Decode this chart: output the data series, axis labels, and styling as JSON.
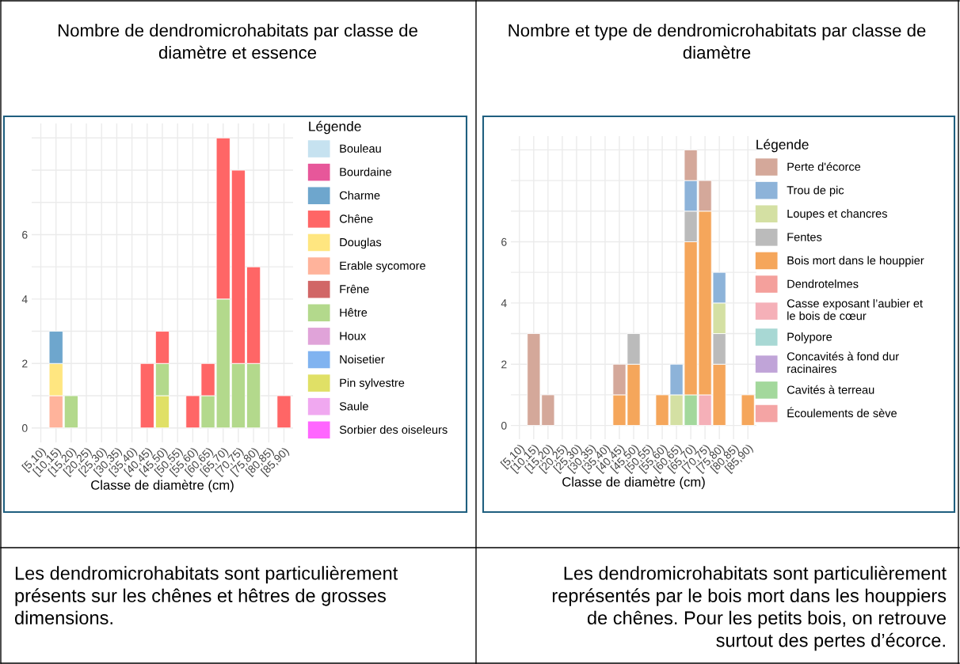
{
  "chart_data": [
    {
      "type": "bar",
      "stacked": true,
      "title": "Nombre de dendromicrohabitats par classe de\ndiamètre et essence",
      "xlabel": "Classe de diamètre (cm)",
      "legend_title": "Légende",
      "legend": "right",
      "grid": true,
      "categories": [
        "[5,10)",
        "[10,15)",
        "[15,20)",
        "[20,25)",
        "[25,30)",
        "[30,35)",
        "[35,40)",
        "[40,45)",
        "[45,50)",
        "[50,55)",
        "[55,60)",
        "[60,65)",
        "[65,70)",
        "[70,75)",
        "[75,80)",
        "[80,85)",
        "[85,90)"
      ],
      "ylim": [
        -0.45,
        9.45
      ],
      "yticks": [
        0,
        {
          "value": 1,
          "label": null
        },
        2,
        {
          "value": 3,
          "label": null
        },
        4,
        {
          "value": 5,
          "label": null
        },
        6,
        {
          "value": 7,
          "label": null
        },
        {
          "value": 8,
          "label": null
        },
        {
          "value": 9,
          "label": null
        }
      ],
      "annotations": [
        "Les dendromicrohabitats sont particulièrement\nprésents sur les chênes et hêtres de grosses\ndimensions."
      ],
      "series": [
        {
          "name": "Sorbier des oiseleurs",
          "color": "#ff66ff",
          "values": [
            0,
            0,
            0,
            0,
            0,
            0,
            0,
            0,
            0,
            0,
            0,
            0,
            0,
            0,
            0,
            0,
            0
          ]
        },
        {
          "name": "Saule",
          "color": "#f0a8f0",
          "values": [
            0,
            0,
            0,
            0,
            0,
            0,
            0,
            0,
            0,
            0,
            0,
            0,
            0,
            0,
            0,
            0,
            0
          ]
        },
        {
          "name": "Pin sylvestre",
          "color": "#e0e066",
          "values": [
            0,
            0,
            0,
            0,
            0,
            0,
            0,
            0,
            1,
            0,
            0,
            0,
            0,
            0,
            0,
            0,
            0
          ]
        },
        {
          "name": "Noisetier",
          "color": "#80b3f0",
          "values": [
            0,
            0,
            0,
            0,
            0,
            0,
            0,
            0,
            0,
            0,
            0,
            0,
            0,
            0,
            0,
            0,
            0
          ]
        },
        {
          "name": "Houx",
          "color": "#e0a3d9",
          "values": [
            0,
            0,
            0,
            0,
            0,
            0,
            0,
            0,
            0,
            0,
            0,
            0,
            0,
            0,
            0,
            0,
            0
          ]
        },
        {
          "name": "Hêtre",
          "color": "#b3d98c",
          "values": [
            0,
            0,
            1,
            0,
            0,
            0,
            0,
            0,
            1,
            0,
            0,
            1,
            4,
            2,
            2,
            0,
            0
          ]
        },
        {
          "name": "Frêne",
          "color": "#d16666",
          "values": [
            0,
            0,
            0,
            0,
            0,
            0,
            0,
            0,
            0,
            0,
            0,
            0,
            0,
            0,
            0,
            0,
            0
          ]
        },
        {
          "name": "Erable sycomore",
          "color": "#ffb39b",
          "values": [
            0,
            1,
            0,
            0,
            0,
            0,
            0,
            0,
            0,
            0,
            0,
            0,
            0,
            0,
            0,
            0,
            0
          ]
        },
        {
          "name": "Douglas",
          "color": "#ffe680",
          "values": [
            0,
            1,
            0,
            0,
            0,
            0,
            0,
            0,
            0,
            0,
            0,
            0,
            0,
            0,
            0,
            0,
            0
          ]
        },
        {
          "name": "Chêne",
          "color": "#ff6666",
          "values": [
            0,
            0,
            0,
            0,
            0,
            0,
            0,
            2,
            1,
            0,
            1,
            1,
            5,
            6,
            3,
            0,
            1
          ]
        },
        {
          "name": "Charme",
          "color": "#6ea6cd",
          "values": [
            0,
            1,
            0,
            0,
            0,
            0,
            0,
            0,
            0,
            0,
            0,
            0,
            0,
            0,
            0,
            0,
            0
          ]
        },
        {
          "name": "Bourdaine",
          "color": "#e7579a",
          "values": [
            0,
            0,
            0,
            0,
            0,
            0,
            0,
            0,
            0,
            0,
            0,
            0,
            0,
            0,
            0,
            0,
            0
          ]
        },
        {
          "name": "Bouleau",
          "color": "#c6e2f0",
          "values": [
            0,
            0,
            0,
            0,
            0,
            0,
            0,
            0,
            0,
            0,
            0,
            0,
            0,
            0,
            0,
            0,
            0
          ]
        }
      ]
    },
    {
      "type": "bar",
      "stacked": true,
      "title": "Nombre et type de dendromicrohabitats par classe de\ndiamètre",
      "xlabel": "Classe de diamètre (cm)",
      "legend_title": "Légende",
      "legend": "right",
      "grid": true,
      "categories": [
        "[5,10)",
        "[10,15)",
        "[15,20)",
        "[20,25)",
        "[25,30)",
        "[30,35)",
        "[35,40)",
        "[40,45)",
        "[45,50)",
        "[50,55)",
        "[55,60)",
        "[60,65)",
        "[65,70)",
        "[70,75)",
        "[75,80)",
        "[80,85)",
        "[85,90)"
      ],
      "ylim": [
        -0.45,
        9.45
      ],
      "yticks": [
        0,
        {
          "value": 1,
          "label": null
        },
        2,
        {
          "value": 3,
          "label": null
        },
        4,
        {
          "value": 5,
          "label": null
        },
        6,
        {
          "value": 7,
          "label": null
        },
        {
          "value": 8,
          "label": null
        },
        {
          "value": 9,
          "label": null
        }
      ],
      "annotations": [
        "Les dendromicrohabitats sont particulièrement\nreprésentés par le bois mort dans les houppiers\nde chênes. Pour les petits bois, on retrouve\nsurtout des pertes d’écorce."
      ],
      "series": [
        {
          "name": "Écoulements de sève",
          "color": "#f4a4a4",
          "values": [
            0,
            0,
            0,
            0,
            0,
            0,
            0,
            0,
            0,
            0,
            0,
            0,
            0,
            0,
            0,
            0,
            0
          ]
        },
        {
          "name": "Cavités à terreau",
          "color": "#a3d89c",
          "values": [
            0,
            0,
            0,
            0,
            0,
            0,
            0,
            0,
            0,
            0,
            0,
            0,
            1,
            0,
            0,
            0,
            0
          ]
        },
        {
          "name": "Concavités à fond dur\nracinaires",
          "color": "#c0a4d8",
          "values": [
            0,
            0,
            0,
            0,
            0,
            0,
            0,
            0,
            0,
            0,
            0,
            0,
            0,
            0,
            0,
            0,
            0
          ]
        },
        {
          "name": "Polypore",
          "color": "#a8d8d4",
          "values": [
            0,
            0,
            0,
            0,
            0,
            0,
            0,
            0,
            0,
            0,
            0,
            0,
            0,
            0,
            0,
            0,
            0
          ]
        },
        {
          "name": "Casse exposant l’aubier et\nle bois de cœur",
          "color": "#f5b0b8",
          "values": [
            0,
            0,
            0,
            0,
            0,
            0,
            0,
            0,
            0,
            0,
            0,
            0,
            0,
            1,
            0,
            0,
            0
          ]
        },
        {
          "name": "Dendrotelmes",
          "color": "#f4a09c",
          "values": [
            0,
            0,
            0,
            0,
            0,
            0,
            0,
            0,
            0,
            0,
            0,
            0,
            0,
            0,
            0,
            0,
            0
          ]
        },
        {
          "name": "Bois mort dans le houppier",
          "color": "#f5a65b",
          "values": [
            0,
            0,
            0,
            0,
            0,
            0,
            0,
            1,
            2,
            0,
            1,
            0,
            5,
            6,
            2,
            0,
            1
          ]
        },
        {
          "name": "Fentes",
          "color": "#bbbbbb",
          "values": [
            0,
            0,
            0,
            0,
            0,
            0,
            0,
            0,
            1,
            0,
            0,
            0,
            1,
            0,
            1,
            0,
            0
          ]
        },
        {
          "name": "Loupes et chancres",
          "color": "#d4e0a3",
          "values": [
            0,
            0,
            0,
            0,
            0,
            0,
            0,
            0,
            0,
            0,
            0,
            1,
            0,
            0,
            1,
            0,
            0
          ]
        },
        {
          "name": "Trou de pic",
          "color": "#8db3d9",
          "values": [
            0,
            0,
            0,
            0,
            0,
            0,
            0,
            0,
            0,
            0,
            0,
            1,
            1,
            0,
            1,
            0,
            0
          ]
        },
        {
          "name": "Perte d'écorce",
          "color": "#d4a89a",
          "values": [
            0,
            3,
            1,
            0,
            0,
            0,
            0,
            1,
            0,
            0,
            0,
            0,
            1,
            1,
            0,
            0,
            0
          ]
        }
      ]
    }
  ]
}
